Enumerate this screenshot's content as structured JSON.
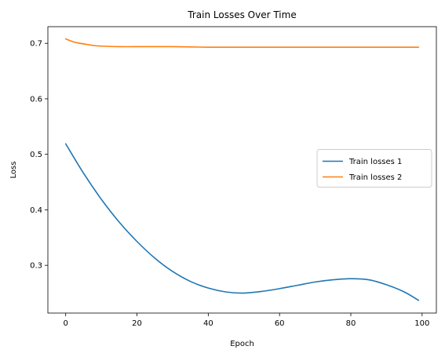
{
  "chart_data": {
    "type": "line",
    "title": "Train Losses Over Time",
    "xlabel": "Epoch",
    "ylabel": "Loss",
    "xlim": [
      -5,
      104
    ],
    "ylim": [
      0.214,
      0.73
    ],
    "xticks": [
      0,
      20,
      40,
      60,
      80,
      100
    ],
    "yticks": [
      0.3,
      0.4,
      0.5,
      0.6,
      0.7
    ],
    "grid": false,
    "legend_position": "center-right",
    "series": [
      {
        "name": "Train losses 1",
        "color": "#1f77b4",
        "x": [
          0,
          5,
          10,
          15,
          20,
          25,
          30,
          35,
          40,
          45,
          50,
          55,
          60,
          65,
          70,
          75,
          80,
          85,
          90,
          95,
          99
        ],
        "values": [
          0.519,
          0.466,
          0.419,
          0.378,
          0.343,
          0.313,
          0.289,
          0.271,
          0.259,
          0.252,
          0.25,
          0.253,
          0.258,
          0.264,
          0.27,
          0.274,
          0.276,
          0.274,
          0.265,
          0.252,
          0.237
        ]
      },
      {
        "name": "Train losses 2",
        "color": "#ff7f0e",
        "x": [
          0,
          2,
          4,
          6,
          8,
          10,
          15,
          20,
          30,
          40,
          50,
          60,
          70,
          80,
          90,
          99
        ],
        "values": [
          0.708,
          0.703,
          0.7,
          0.698,
          0.696,
          0.695,
          0.694,
          0.694,
          0.694,
          0.693,
          0.693,
          0.693,
          0.693,
          0.693,
          0.693,
          0.693
        ]
      }
    ]
  }
}
